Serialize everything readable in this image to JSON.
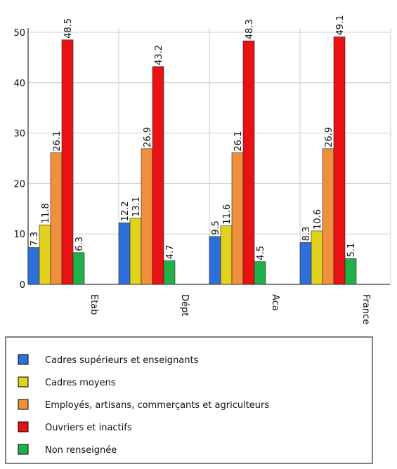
{
  "chart_data": {
    "type": "bar",
    "categories": [
      "Etab",
      "Dépt",
      "Aca",
      "France"
    ],
    "series": [
      {
        "name": "Cadres supérieurs et enseignants",
        "color": "#2f6fdc",
        "values": [
          7.3,
          12.2,
          9.5,
          8.3
        ]
      },
      {
        "name": "Cadres moyens",
        "color": "#e2d21e",
        "values": [
          11.8,
          13.1,
          11.6,
          10.6
        ]
      },
      {
        "name": "Employés, artisans, commerçants et agriculteurs",
        "color": "#f0903e",
        "values": [
          26.1,
          26.9,
          26.1,
          26.9
        ]
      },
      {
        "name": "Ouvriers et inactifs",
        "color": "#e81212",
        "values": [
          48.5,
          43.2,
          48.3,
          49.1
        ]
      },
      {
        "name": "Non renseignée",
        "color": "#22b04a",
        "values": [
          6.3,
          4.7,
          4.5,
          5.1
        ]
      }
    ],
    "ylim": [
      0,
      50
    ],
    "yticks": [
      0,
      10,
      20,
      30,
      40,
      50
    ],
    "grid": true
  }
}
